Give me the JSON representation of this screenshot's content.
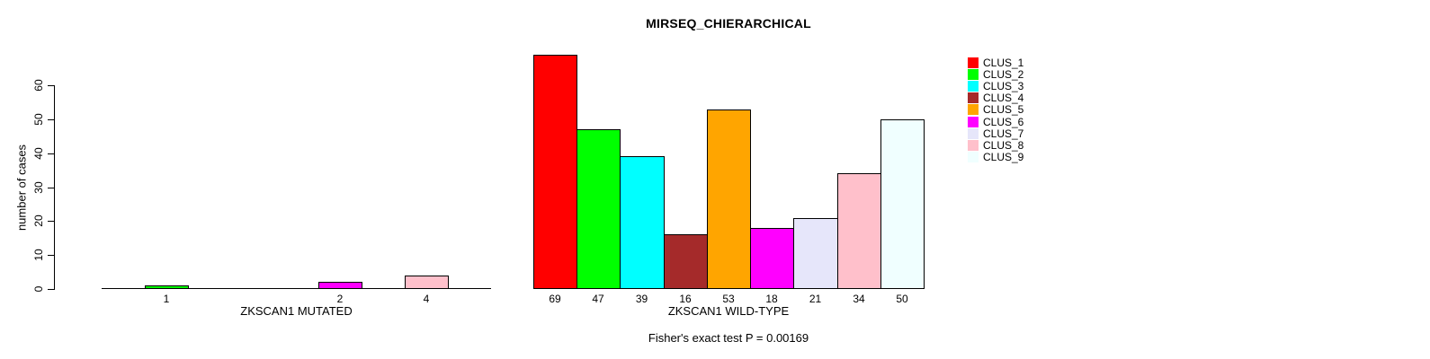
{
  "chart_data": {
    "type": "bar",
    "title": "MIRSEQ_CHIERARCHICAL",
    "ylabel": "number of cases",
    "ylim": [
      0,
      69
    ],
    "yticks": [
      0,
      10,
      20,
      30,
      40,
      50,
      60
    ],
    "grid": false,
    "legend_position": "right",
    "clusters": [
      "CLUS_1",
      "CLUS_2",
      "CLUS_3",
      "CLUS_4",
      "CLUS_5",
      "CLUS_6",
      "CLUS_7",
      "CLUS_8",
      "CLUS_9"
    ],
    "colors": [
      "#FF0000",
      "#00FF00",
      "#00FFFF",
      "#A52A2A",
      "#FFA500",
      "#FF00FF",
      "#E6E6FA",
      "#FFC0CB",
      "#F0FFFF"
    ],
    "panels": [
      {
        "xlabel": "ZKSCAN1 MUTATED",
        "values": [
          0,
          1,
          0,
          0,
          0,
          2,
          0,
          4,
          0
        ],
        "bar_labels": [
          "",
          "1",
          "",
          "",
          "",
          "2",
          "",
          "4",
          ""
        ]
      },
      {
        "xlabel": "ZKSCAN1 WILD-TYPE",
        "values": [
          69,
          47,
          39,
          16,
          53,
          18,
          21,
          34,
          50
        ],
        "bar_labels": [
          "69",
          "47",
          "39",
          "16",
          "53",
          "18",
          "21",
          "34",
          "50"
        ]
      }
    ],
    "annotation": "Fisher's exact test P = 0.00169"
  }
}
